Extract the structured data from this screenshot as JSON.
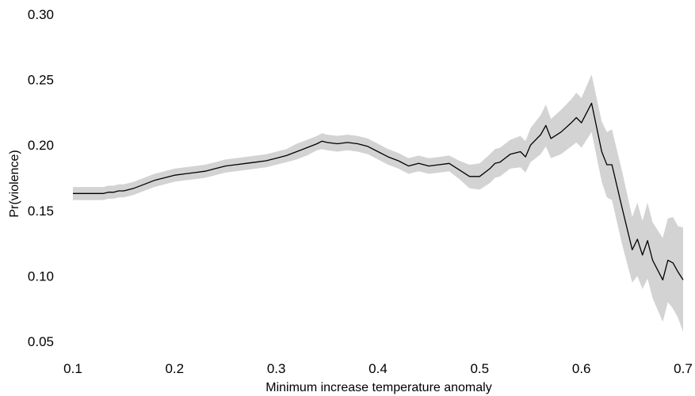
{
  "chart_data": {
    "type": "line",
    "xlabel": "Minimum increase temperature anomaly",
    "ylabel": "Pr(violence)",
    "xlim": [
      0.1,
      0.7
    ],
    "ylim": [
      0.05,
      0.3
    ],
    "xticks": [
      {
        "value": 0.1,
        "label": "0.1"
      },
      {
        "value": 0.2,
        "label": "0.2"
      },
      {
        "value": 0.3,
        "label": "0.3"
      },
      {
        "value": 0.4,
        "label": "0.4"
      },
      {
        "value": 0.5,
        "label": "0.5"
      },
      {
        "value": 0.6,
        "label": "0.6"
      },
      {
        "value": 0.7,
        "label": "0.7"
      }
    ],
    "yticks": [
      {
        "value": 0.05,
        "label": "0.05"
      },
      {
        "value": 0.1,
        "label": "0.10"
      },
      {
        "value": 0.15,
        "label": "0.15"
      },
      {
        "value": 0.2,
        "label": "0.20"
      },
      {
        "value": 0.25,
        "label": "0.25"
      },
      {
        "value": 0.3,
        "label": "0.30"
      }
    ],
    "grid": false,
    "line_color": "#000000",
    "band_color": "#d3d3d3",
    "series": [
      {
        "x": [
          0.1,
          0.105,
          0.11,
          0.115,
          0.12,
          0.125,
          0.13,
          0.135,
          0.14,
          0.145,
          0.15,
          0.16,
          0.17,
          0.18,
          0.19,
          0.2,
          0.21,
          0.22,
          0.23,
          0.24,
          0.25,
          0.26,
          0.27,
          0.28,
          0.29,
          0.3,
          0.31,
          0.32,
          0.33,
          0.34,
          0.345,
          0.35,
          0.36,
          0.37,
          0.38,
          0.39,
          0.4,
          0.41,
          0.42,
          0.43,
          0.44,
          0.45,
          0.46,
          0.47,
          0.48,
          0.49,
          0.5,
          0.51,
          0.515,
          0.52,
          0.53,
          0.54,
          0.545,
          0.55,
          0.56,
          0.565,
          0.57,
          0.58,
          0.59,
          0.595,
          0.6,
          0.61,
          0.62,
          0.625,
          0.63,
          0.64,
          0.65,
          0.655,
          0.66,
          0.665,
          0.67,
          0.68,
          0.685,
          0.69,
          0.695,
          0.7
        ],
        "y": [
          0.163,
          0.163,
          0.163,
          0.163,
          0.163,
          0.163,
          0.163,
          0.164,
          0.164,
          0.165,
          0.165,
          0.167,
          0.17,
          0.173,
          0.175,
          0.177,
          0.178,
          0.179,
          0.18,
          0.182,
          0.184,
          0.185,
          0.186,
          0.187,
          0.188,
          0.19,
          0.192,
          0.195,
          0.198,
          0.201,
          0.203,
          0.202,
          0.201,
          0.202,
          0.201,
          0.199,
          0.195,
          0.191,
          0.188,
          0.184,
          0.186,
          0.184,
          0.185,
          0.186,
          0.181,
          0.176,
          0.176,
          0.182,
          0.186,
          0.187,
          0.193,
          0.195,
          0.191,
          0.2,
          0.208,
          0.215,
          0.205,
          0.21,
          0.217,
          0.221,
          0.217,
          0.232,
          0.195,
          0.185,
          0.185,
          0.152,
          0.12,
          0.128,
          0.116,
          0.127,
          0.112,
          0.097,
          0.112,
          0.11,
          0.103,
          0.097
        ],
        "lower": [
          0.158,
          0.158,
          0.158,
          0.158,
          0.158,
          0.158,
          0.158,
          0.159,
          0.159,
          0.16,
          0.16,
          0.162,
          0.165,
          0.168,
          0.17,
          0.172,
          0.173,
          0.174,
          0.175,
          0.177,
          0.179,
          0.18,
          0.181,
          0.182,
          0.183,
          0.185,
          0.187,
          0.189,
          0.192,
          0.196,
          0.197,
          0.196,
          0.195,
          0.196,
          0.195,
          0.193,
          0.189,
          0.185,
          0.182,
          0.178,
          0.18,
          0.178,
          0.179,
          0.18,
          0.174,
          0.167,
          0.166,
          0.171,
          0.175,
          0.176,
          0.182,
          0.183,
          0.179,
          0.187,
          0.193,
          0.199,
          0.19,
          0.193,
          0.199,
          0.202,
          0.198,
          0.21,
          0.172,
          0.16,
          0.158,
          0.124,
          0.095,
          0.1,
          0.09,
          0.098,
          0.083,
          0.065,
          0.08,
          0.075,
          0.068,
          0.057
        ],
        "upper": [
          0.168,
          0.168,
          0.168,
          0.168,
          0.168,
          0.168,
          0.168,
          0.169,
          0.169,
          0.17,
          0.17,
          0.172,
          0.175,
          0.178,
          0.18,
          0.182,
          0.183,
          0.184,
          0.185,
          0.187,
          0.189,
          0.19,
          0.191,
          0.192,
          0.193,
          0.195,
          0.197,
          0.201,
          0.204,
          0.207,
          0.209,
          0.208,
          0.207,
          0.208,
          0.207,
          0.205,
          0.201,
          0.197,
          0.194,
          0.19,
          0.192,
          0.19,
          0.191,
          0.192,
          0.188,
          0.185,
          0.186,
          0.193,
          0.197,
          0.198,
          0.204,
          0.207,
          0.203,
          0.213,
          0.223,
          0.231,
          0.22,
          0.227,
          0.235,
          0.24,
          0.236,
          0.254,
          0.218,
          0.21,
          0.212,
          0.18,
          0.145,
          0.156,
          0.142,
          0.156,
          0.141,
          0.129,
          0.144,
          0.145,
          0.138,
          0.137
        ]
      }
    ]
  }
}
